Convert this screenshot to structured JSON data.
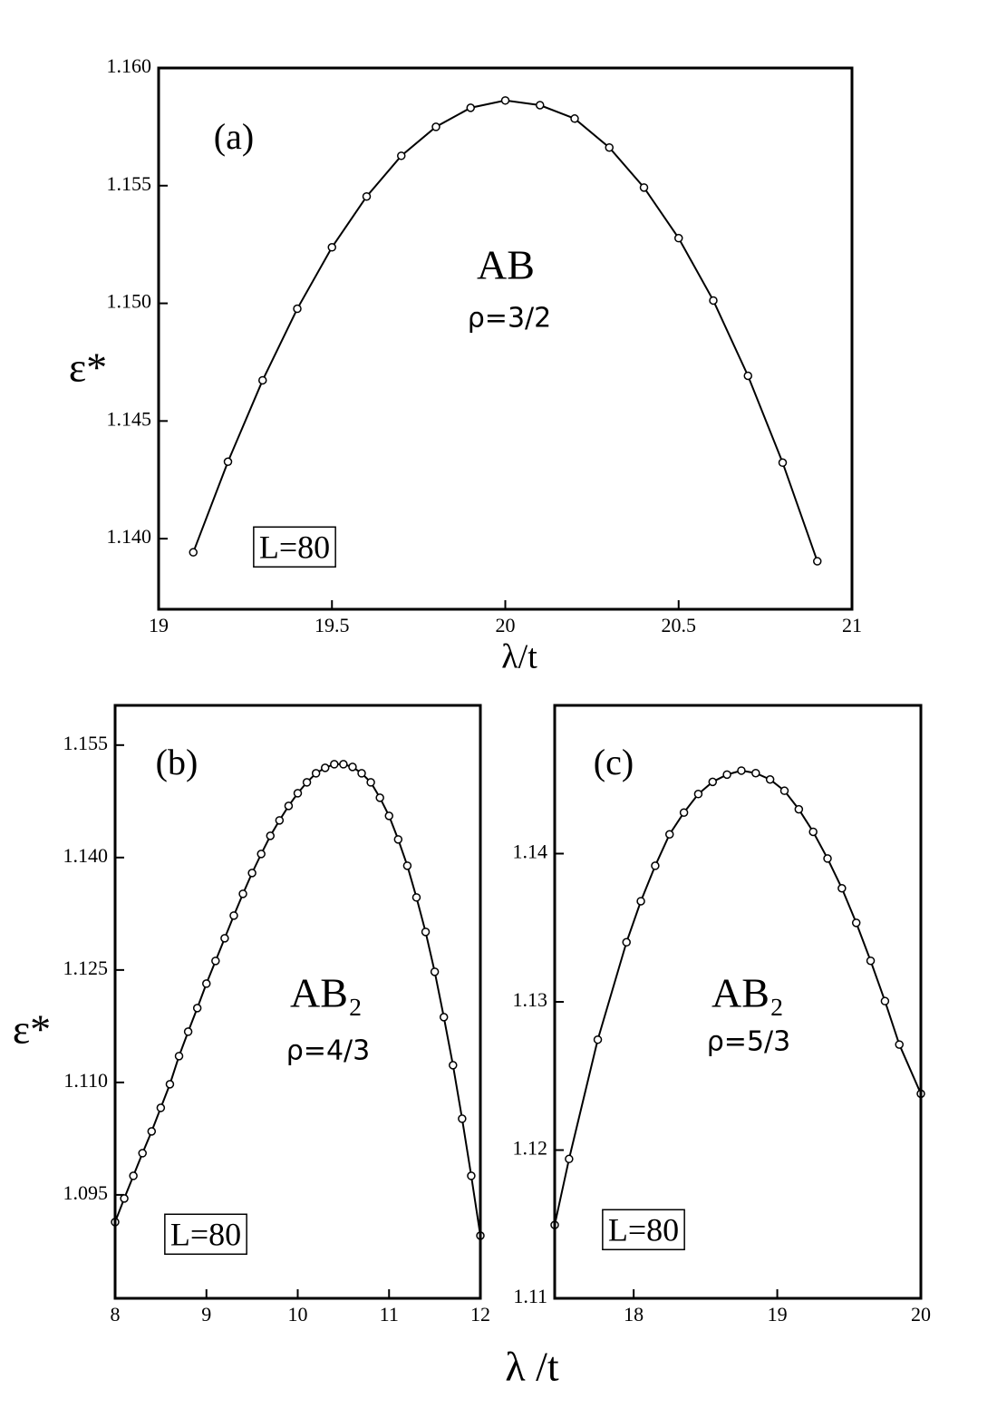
{
  "chart_data": [
    {
      "type": "line",
      "xlabel": "λ/t",
      "ylabel": "ε*",
      "annotations": {
        "panel": "(a)",
        "compound": "AB",
        "density": "ρ=3/2",
        "size": "L=80"
      },
      "xlim": [
        19,
        21
      ],
      "xticks": [
        19,
        19.5,
        20,
        20.5,
        21
      ],
      "ylim": [
        1.137,
        1.16
      ],
      "yticks": [
        {
          "value": 1.14,
          "label": "1.140"
        },
        1.145,
        {
          "value": 1.15,
          "label": "1.150"
        },
        1.155,
        {
          "value": 1.16,
          "label": "1.160"
        }
      ],
      "x": [
        19.1,
        19.2,
        19.3,
        19.4,
        19.5,
        19.6,
        19.7,
        19.8,
        19.9,
        20.0,
        20.1,
        20.2,
        20.3,
        20.4,
        20.5,
        20.6,
        20.7,
        20.8,
        20.9
      ],
      "series": [
        {
          "color": "#000000",
          "values": [
            1.13942,
            1.14327,
            1.14673,
            1.14977,
            1.15238,
            1.15454,
            1.15627,
            1.1575,
            1.15831,
            1.15862,
            1.15842,
            1.15785,
            1.15662,
            1.15492,
            1.15277,
            1.15012,
            1.14692,
            1.14323,
            1.13904
          ]
        }
      ]
    },
    {
      "type": "line",
      "xlabel": "λ /t",
      "ylabel": "ε*",
      "annotations": {
        "panel": "(b)",
        "compound": "AB₂",
        "density": "ρ=4/3",
        "size": "L=80"
      },
      "xlim": [
        8,
        12
      ],
      "xticks": [
        8,
        9,
        10,
        11,
        12
      ],
      "ylim": [
        1.0812,
        1.1603
      ],
      "yticks": [
        1.095,
        {
          "value": 1.11,
          "label": "1.110"
        },
        1.125,
        {
          "value": 1.14,
          "label": "1.140"
        },
        1.155
      ],
      "x": [
        8.0,
        8.1,
        8.2,
        8.3,
        8.4,
        8.5,
        8.6,
        8.7,
        8.8,
        8.9,
        9.0,
        9.1,
        9.2,
        9.3,
        9.4,
        9.5,
        9.6,
        9.7,
        9.8,
        9.9,
        10.0,
        10.1,
        10.2,
        10.3,
        10.4,
        10.5,
        10.6,
        10.7,
        10.8,
        10.9,
        11.0,
        11.1,
        11.2,
        11.3,
        11.4,
        11.5,
        11.6,
        11.7,
        11.8,
        11.9,
        12.0
      ],
      "series": [
        {
          "color": "#000000",
          "values": [
            1.09137,
            1.09452,
            1.09754,
            1.10056,
            1.10347,
            1.10661,
            1.10976,
            1.11351,
            1.11677,
            1.11992,
            1.12318,
            1.12621,
            1.12923,
            1.13226,
            1.13516,
            1.13794,
            1.14048,
            1.1429,
            1.14496,
            1.14689,
            1.14858,
            1.15003,
            1.15124,
            1.15197,
            1.15245,
            1.15245,
            1.15209,
            1.15124,
            1.15003,
            1.14798,
            1.14556,
            1.14242,
            1.13891,
            1.13468,
            1.13008,
            1.12476,
            1.11871,
            1.1123,
            1.10516,
            1.09754,
            1.08956
          ]
        }
      ]
    },
    {
      "type": "line",
      "annotations": {
        "panel": "(c)",
        "compound": "AB₂",
        "density": "ρ=5/3",
        "size": "L=80"
      },
      "xlim": [
        17.45,
        20
      ],
      "xticks": [
        18,
        19,
        20
      ],
      "ylim": [
        1.11,
        1.15
      ],
      "yticks": [
        1.11,
        1.12,
        1.13,
        1.14
      ],
      "x": [
        17.45,
        17.55,
        17.75,
        17.95,
        18.05,
        18.15,
        18.25,
        18.35,
        18.45,
        18.55,
        18.65,
        18.75,
        18.85,
        18.95,
        19.05,
        19.15,
        19.25,
        19.35,
        19.45,
        19.55,
        19.65,
        19.75,
        19.85,
        20.0
      ],
      "series": [
        {
          "color": "#000000",
          "values": [
            1.11495,
            1.1194,
            1.12745,
            1.13402,
            1.13679,
            1.13918,
            1.1413,
            1.14277,
            1.14402,
            1.14484,
            1.14533,
            1.1456,
            1.14543,
            1.145,
            1.14424,
            1.14299,
            1.14147,
            1.13967,
            1.13766,
            1.13533,
            1.13277,
            1.13005,
            1.12712,
            1.1238
          ]
        }
      ]
    }
  ]
}
